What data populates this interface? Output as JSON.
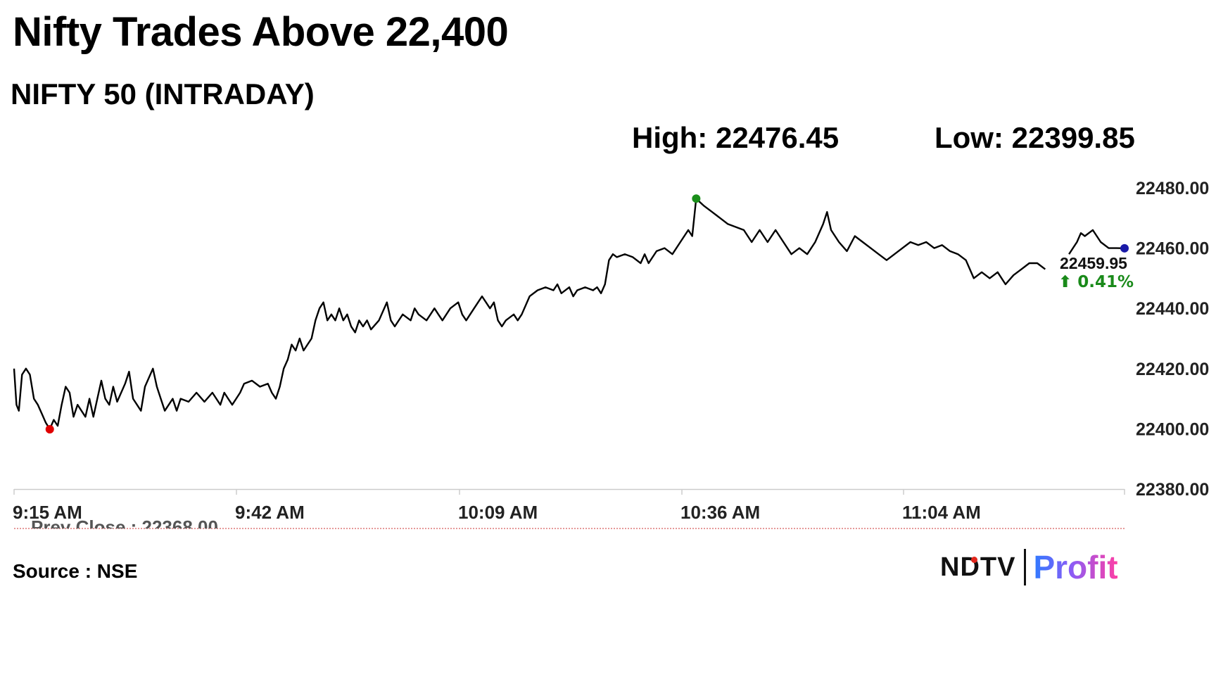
{
  "headline": "Nifty Trades Above 22,400",
  "subtitle": "NIFTY 50 (INTRADAY)",
  "high_text": "High: 22476.45",
  "low_text": "Low: 22399.85",
  "source_text": "Source : NSE",
  "logo": {
    "ndtv": "NDTV",
    "profit": "Profit"
  },
  "colors": {
    "line": "#000000",
    "high_marker": "#1a8f1a",
    "low_marker": "#e00000",
    "last_marker": "#1a1aa8",
    "change_up": "#1a8a1a",
    "prev_close_line": "#cc3333",
    "axis": "#cccccc"
  },
  "chart_data": {
    "type": "line",
    "title": "NIFTY 50 (INTRADAY)",
    "ylim": [
      22380,
      22480
    ],
    "yticks": [
      "22480.00",
      "22460.00",
      "22440.00",
      "22420.00",
      "22400.00",
      "22380.00"
    ],
    "xticks": [
      "9:15 AM",
      "9:42 AM",
      "10:09 AM",
      "10:36 AM",
      "11:04 AM"
    ],
    "x_range_minutes_from_open": [
      0,
      140
    ],
    "prev_close_label": "Prev Close : 22368.00",
    "last_value_label": "22459.95",
    "change_label": "⬆ 0.41%",
    "high_point": {
      "x": 86,
      "y": 22476.45
    },
    "low_point": {
      "x": 4.5,
      "y": 22399.85
    },
    "last_point": {
      "x": 140,
      "y": 22459.95
    },
    "series": [
      {
        "values": [
          [
            0,
            22420
          ],
          [
            0.3,
            22408
          ],
          [
            0.6,
            22406
          ],
          [
            1,
            22418
          ],
          [
            1.5,
            22420
          ],
          [
            2,
            22418
          ],
          [
            2.5,
            22410
          ],
          [
            3,
            22408
          ],
          [
            3.5,
            22405
          ],
          [
            4,
            22402
          ],
          [
            4.5,
            22399.9
          ],
          [
            5,
            22403
          ],
          [
            5.5,
            22401
          ],
          [
            6,
            22408
          ],
          [
            6.5,
            22414
          ],
          [
            7,
            22412
          ],
          [
            7.5,
            22404
          ],
          [
            8,
            22408
          ],
          [
            9,
            22404
          ],
          [
            9.5,
            22410
          ],
          [
            10,
            22404
          ],
          [
            10.5,
            22410
          ],
          [
            11,
            22416
          ],
          [
            11.5,
            22410
          ],
          [
            12,
            22408
          ],
          [
            12.5,
            22414
          ],
          [
            13,
            22409
          ],
          [
            14,
            22415
          ],
          [
            14.5,
            22419
          ],
          [
            15,
            22410
          ],
          [
            16,
            22406
          ],
          [
            16.5,
            22414
          ],
          [
            17.5,
            22420
          ],
          [
            18,
            22414
          ],
          [
            18.5,
            22410
          ],
          [
            19,
            22406
          ],
          [
            20,
            22410
          ],
          [
            20.5,
            22406
          ],
          [
            21,
            22410
          ],
          [
            22,
            22409
          ],
          [
            23,
            22412
          ],
          [
            24,
            22409
          ],
          [
            25,
            22412
          ],
          [
            26,
            22408
          ],
          [
            26.5,
            22412
          ],
          [
            27,
            22410
          ],
          [
            27.5,
            22408
          ],
          [
            28,
            22410
          ],
          [
            28.5,
            22412
          ],
          [
            29,
            22415
          ],
          [
            30,
            22416
          ],
          [
            31,
            22414
          ],
          [
            32,
            22415
          ],
          [
            32.5,
            22412
          ],
          [
            33,
            22410
          ],
          [
            33.5,
            22414
          ],
          [
            34,
            22420
          ],
          [
            34.5,
            22423
          ],
          [
            35,
            22428
          ],
          [
            35.5,
            22426
          ],
          [
            36,
            22430
          ],
          [
            36.5,
            22426
          ],
          [
            37,
            22428
          ],
          [
            37.5,
            22430
          ],
          [
            38,
            22436
          ],
          [
            38.5,
            22440
          ],
          [
            39,
            22442
          ],
          [
            39.5,
            22436
          ],
          [
            40,
            22438
          ],
          [
            40.5,
            22436
          ],
          [
            41,
            22440
          ],
          [
            41.5,
            22436
          ],
          [
            42,
            22438
          ],
          [
            42.5,
            22434
          ],
          [
            43,
            22432
          ],
          [
            43.5,
            22436
          ],
          [
            44,
            22434
          ],
          [
            44.5,
            22436
          ],
          [
            45,
            22433
          ],
          [
            46,
            22436
          ],
          [
            47,
            22442
          ],
          [
            47.5,
            22436
          ],
          [
            48,
            22434
          ],
          [
            49,
            22438
          ],
          [
            50,
            22436
          ],
          [
            50.5,
            22440
          ],
          [
            51,
            22438
          ],
          [
            52,
            22436
          ],
          [
            53,
            22440
          ],
          [
            53.5,
            22438
          ],
          [
            54,
            22436
          ],
          [
            55,
            22440
          ],
          [
            56,
            22442
          ],
          [
            56.5,
            22438
          ],
          [
            57,
            22436
          ],
          [
            58,
            22440
          ],
          [
            58.5,
            22442
          ],
          [
            59,
            22444
          ],
          [
            60,
            22440
          ],
          [
            60.5,
            22442
          ],
          [
            61,
            22436
          ],
          [
            61.5,
            22434
          ],
          [
            62,
            22436
          ],
          [
            63,
            22438
          ],
          [
            63.5,
            22436
          ],
          [
            64,
            22438
          ],
          [
            65,
            22444
          ],
          [
            66,
            22446
          ],
          [
            67,
            22447
          ],
          [
            68,
            22446
          ],
          [
            68.5,
            22448
          ],
          [
            69,
            22445
          ],
          [
            70,
            22447
          ],
          [
            70.5,
            22444
          ],
          [
            71,
            22446
          ],
          [
            72,
            22447
          ],
          [
            73,
            22446
          ],
          [
            73.5,
            22447
          ],
          [
            74,
            22445
          ],
          [
            74.5,
            22448
          ],
          [
            75,
            22456
          ],
          [
            75.5,
            22458
          ],
          [
            76,
            22457
          ],
          [
            77,
            22458
          ],
          [
            78,
            22457
          ],
          [
            79,
            22455
          ],
          [
            79.5,
            22458
          ],
          [
            80,
            22455
          ],
          [
            81,
            22459
          ],
          [
            82,
            22460
          ],
          [
            83,
            22458
          ],
          [
            84,
            22462
          ],
          [
            85,
            22466
          ],
          [
            85.5,
            22464
          ],
          [
            86,
            22476.4
          ],
          [
            87,
            22474
          ],
          [
            88,
            22472
          ],
          [
            89,
            22470
          ],
          [
            90,
            22468
          ],
          [
            91,
            22467
          ],
          [
            92,
            22466
          ],
          [
            93,
            22462
          ],
          [
            94,
            22466
          ],
          [
            95,
            22462
          ],
          [
            96,
            22466
          ],
          [
            97,
            22462
          ],
          [
            98,
            22458
          ],
          [
            99,
            22460
          ],
          [
            100,
            22458
          ],
          [
            101,
            22462
          ],
          [
            102,
            22468
          ],
          [
            102.5,
            22472
          ],
          [
            103,
            22466
          ],
          [
            104,
            22462
          ],
          [
            105,
            22459
          ],
          [
            106,
            22464
          ],
          [
            107,
            22462
          ],
          [
            108,
            22460
          ],
          [
            109,
            22458
          ],
          [
            110,
            22456
          ],
          [
            111,
            22458
          ],
          [
            112,
            22460
          ],
          [
            113,
            22462
          ],
          [
            114,
            22461
          ],
          [
            115,
            22462
          ],
          [
            116,
            22460
          ],
          [
            117,
            22461
          ],
          [
            118,
            22459
          ],
          [
            119,
            22458
          ],
          [
            120,
            22456
          ],
          [
            121,
            22450
          ],
          [
            122,
            22452
          ],
          [
            123,
            22450
          ],
          [
            124,
            22452
          ],
          [
            125,
            22448
          ],
          [
            126,
            22451
          ],
          [
            127,
            22453
          ],
          [
            128,
            22455
          ],
          [
            129,
            22455
          ],
          [
            130,
            22453
          ],
          null,
          [
            133,
            22458
          ],
          [
            134,
            22462
          ],
          [
            134.5,
            22465
          ],
          [
            135,
            22464
          ],
          [
            136,
            22466
          ],
          [
            137,
            22462
          ],
          [
            138,
            22460
          ],
          [
            139,
            22460
          ],
          [
            140,
            22459.95
          ]
        ]
      }
    ]
  }
}
